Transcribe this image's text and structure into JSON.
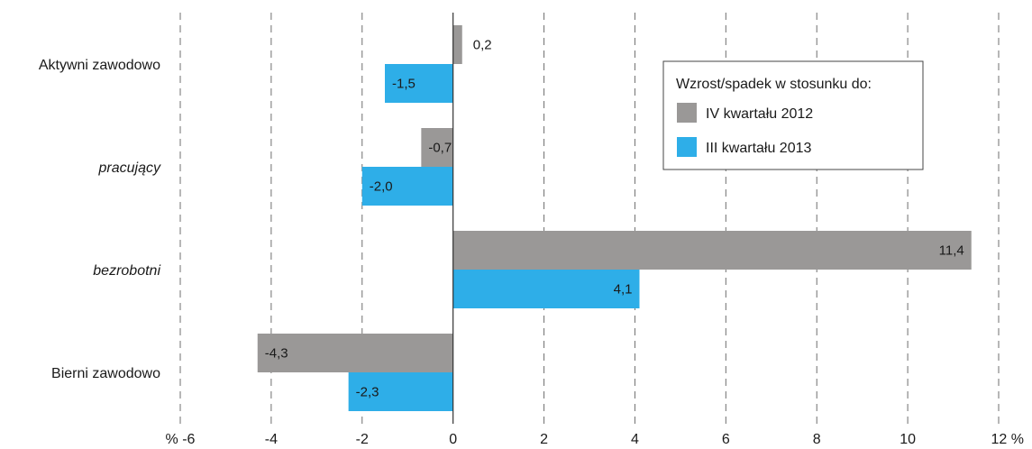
{
  "chart_data": {
    "type": "bar",
    "orientation": "horizontal",
    "categories": [
      "Aktywni zawodowo",
      "pracujący",
      "bezrobotni",
      "Bierni zawodowo"
    ],
    "category_italic": [
      false,
      true,
      true,
      false
    ],
    "series": [
      {
        "name": "IV kwartału 2012",
        "values": [
          0.2,
          -0.7,
          11.4,
          -4.3
        ],
        "labels": [
          "0,2",
          "-0,7",
          "11,4",
          "-4,3"
        ],
        "color": "#9a9897"
      },
      {
        "name": "III kwartału 2013",
        "values": [
          -1.5,
          -2.0,
          4.1,
          -2.3
        ],
        "labels": [
          "-1,5",
          "-2,0",
          "4,1",
          "-2,3"
        ],
        "color": "#2eaee8"
      }
    ],
    "xlim": [
      -6,
      12
    ],
    "xticks": [
      -6,
      -4,
      -2,
      0,
      2,
      4,
      6,
      8,
      10,
      12
    ],
    "xtick_labels": [
      "% -6",
      "-4",
      "-2",
      "0",
      "2",
      "4",
      "6",
      "8",
      "10",
      "12 %"
    ],
    "grid": "dashed vertical",
    "legend": {
      "title": "Wzrost/spadek w stosunku do:",
      "placement": "top-right"
    }
  }
}
